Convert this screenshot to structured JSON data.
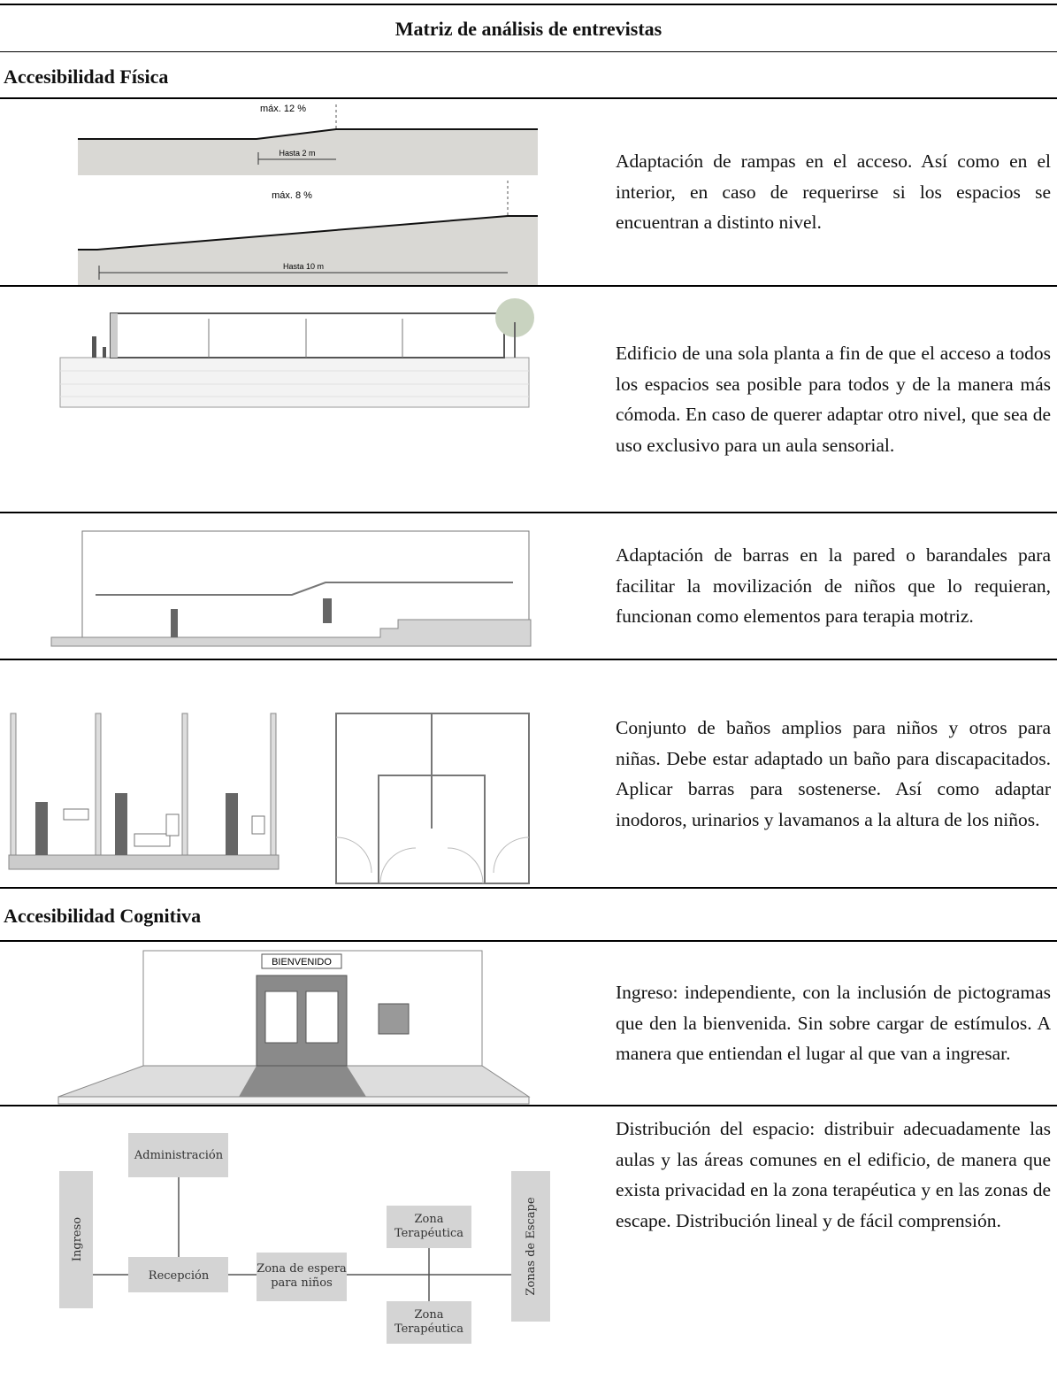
{
  "title": "Matriz de análisis de entrevistas",
  "sections": [
    {
      "heading": "Accesibilidad Física",
      "rows": [
        {
          "figure_labels": [
            "máx. 12 %",
            "Hasta 2 m",
            "máx. 8 %",
            "Hasta 10 m"
          ],
          "text": "Adaptación de rampas en el acceso. Así como en el interior, en caso de requerirse si los espacios se encuentran a distinto nivel."
        },
        {
          "text": "Edificio de una sola planta a fin de que el acceso a todos los espacios sea posible para todos y de la manera más cómoda. En caso de querer adaptar otro nivel, que sea de uso exclusivo para un aula sensorial."
        },
        {
          "text": "Adaptación de barras en la pared o barandales para facilitar la movilización de niños que lo requieran, funcionan como elementos para terapia motriz."
        },
        {
          "text": "Conjunto de baños amplios para niños y otros para niñas. Debe estar adaptado un baño para discapacitados. Aplicar barras para sostenerse. Así como adaptar inodoros, urinarios y lavamanos a la altura de los niños."
        }
      ]
    },
    {
      "heading": "Accesibilidad Cognitiva",
      "rows": [
        {
          "figure_labels": [
            "BIENVENIDO"
          ],
          "text": "Ingreso: independiente, con la inclusión de pictogramas que den la bienvenida. Sin sobre cargar de estímulos. A manera que entiendan el lugar al que van a ingresar."
        },
        {
          "figure_labels": [
            "Administración",
            "Ingreso",
            "Recepción",
            [
              "Zona de espera",
              "para niños"
            ],
            [
              "Zona",
              "Terapéutica"
            ],
            [
              "Zona",
              "Terapéutica"
            ],
            "Zonas de Escape"
          ],
          "text": "Distribución del espacio: distribuir adecuadamente las aulas y las áreas comunes en el edificio, de manera que exista privacidad en la zona terapéutica y en las zonas de escape. Distribución lineal y de fácil comprensión."
        }
      ]
    }
  ]
}
